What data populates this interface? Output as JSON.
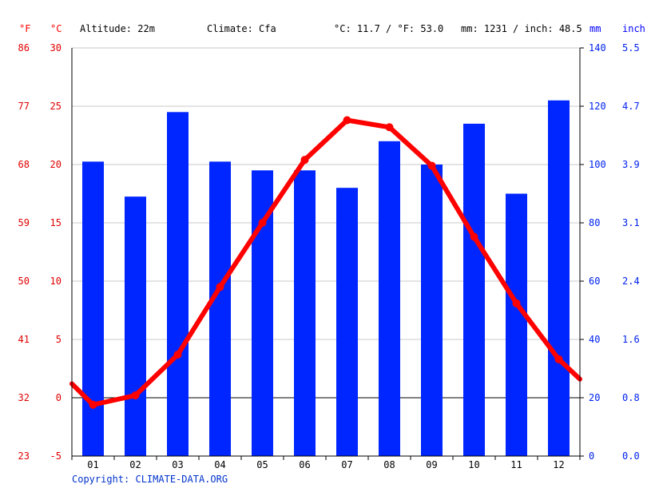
{
  "header": {
    "unit_f": "°F",
    "unit_c": "°C",
    "altitude": "Altitude: 22m",
    "climate": "Climate: Cfa",
    "avg_temp": "°C: 11.7 / °F: 53.0",
    "precip_total": "mm: 1231 / inch: 48.5",
    "unit_mm": "mm",
    "unit_inch": "inch"
  },
  "copyright": "Copyright: CLIMATE-DATA.ORG",
  "colors": {
    "bars": "#0026ff",
    "temp_line": "#ff0000",
    "grid": "#c8c8c8",
    "zero_line": "#000000"
  },
  "chart_data": {
    "type": "bar",
    "categories": [
      "01",
      "02",
      "03",
      "04",
      "05",
      "06",
      "07",
      "08",
      "09",
      "10",
      "11",
      "12"
    ],
    "precip_mm": [
      101,
      89,
      118,
      101,
      98,
      98,
      92,
      108,
      100,
      114,
      90,
      122
    ],
    "temp_c": [
      -0.6,
      0.2,
      3.7,
      9.5,
      15.0,
      20.4,
      23.8,
      23.2,
      19.9,
      13.8,
      8.1,
      3.3
    ],
    "temp_line_ends": [
      1.2,
      1.6
    ],
    "left_axis_c": {
      "range": [
        -5,
        30
      ],
      "ticks": [
        "-5",
        "0",
        "5",
        "10",
        "15",
        "20",
        "25",
        "30"
      ]
    },
    "left_axis_f": {
      "range": [
        23,
        86
      ],
      "ticks": [
        "23",
        "32",
        "41",
        "50",
        "59",
        "68",
        "77",
        "86"
      ]
    },
    "right_axis_mm": {
      "range": [
        0,
        140
      ],
      "ticks": [
        "0",
        "20",
        "40",
        "60",
        "80",
        "100",
        "120",
        "140"
      ]
    },
    "right_axis_inch": {
      "range": [
        0,
        5.5
      ],
      "ticks": [
        "0.0",
        "0.8",
        "1.6",
        "2.4",
        "3.1",
        "3.9",
        "4.7",
        "5.5"
      ]
    },
    "grid": true
  }
}
